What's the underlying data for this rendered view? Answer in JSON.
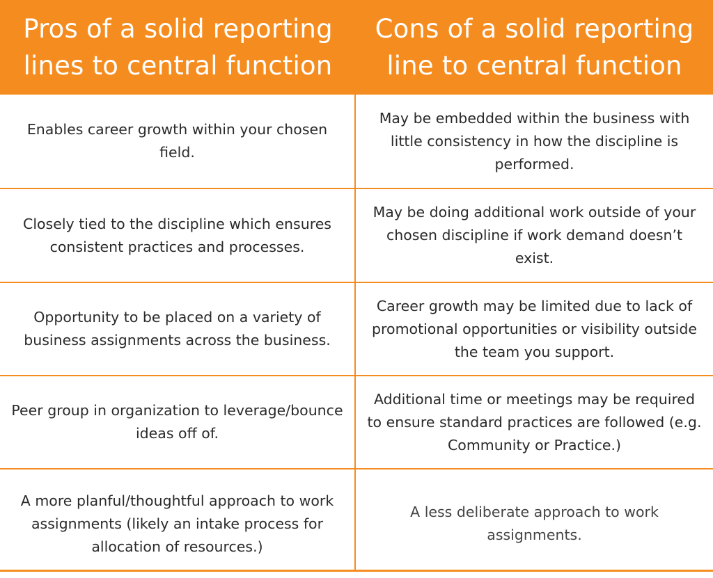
{
  "header": {
    "pros_title": "Pros of a solid reporting lines to central function",
    "cons_title": "Cons of a solid reporting line to central function"
  },
  "rows": [
    {
      "pro": "Enables career growth within your chosen field.",
      "con": "May be embedded within the business with little consistency in how the discipline is performed."
    },
    {
      "pro": "Closely tied to the discipline which ensures consistent practices and processes.",
      "con": "May be doing additional work outside of your chosen discipline if work demand doesn’t exist."
    },
    {
      "pro": "Opportunity to be placed on a variety of business assignments across the business.",
      "con": "Career growth may be limited due to lack of promotional opportunities or visibility outside the team you support."
    },
    {
      "pro": "Peer group in organization to leverage/bounce ideas off of.",
      "con": "Additional time or meetings may be required to ensure standard practices are followed (e.g. Community or Practice.)"
    },
    {
      "pro": "A more planful/thoughtful approach to work assignments (likely an intake process for allocation of resources.)",
      "con": "A less deliberate approach to work assignments."
    }
  ],
  "colors": {
    "accent": "#f58c1f",
    "header_text": "#ffffff",
    "body_text": "#2a2a2a"
  }
}
